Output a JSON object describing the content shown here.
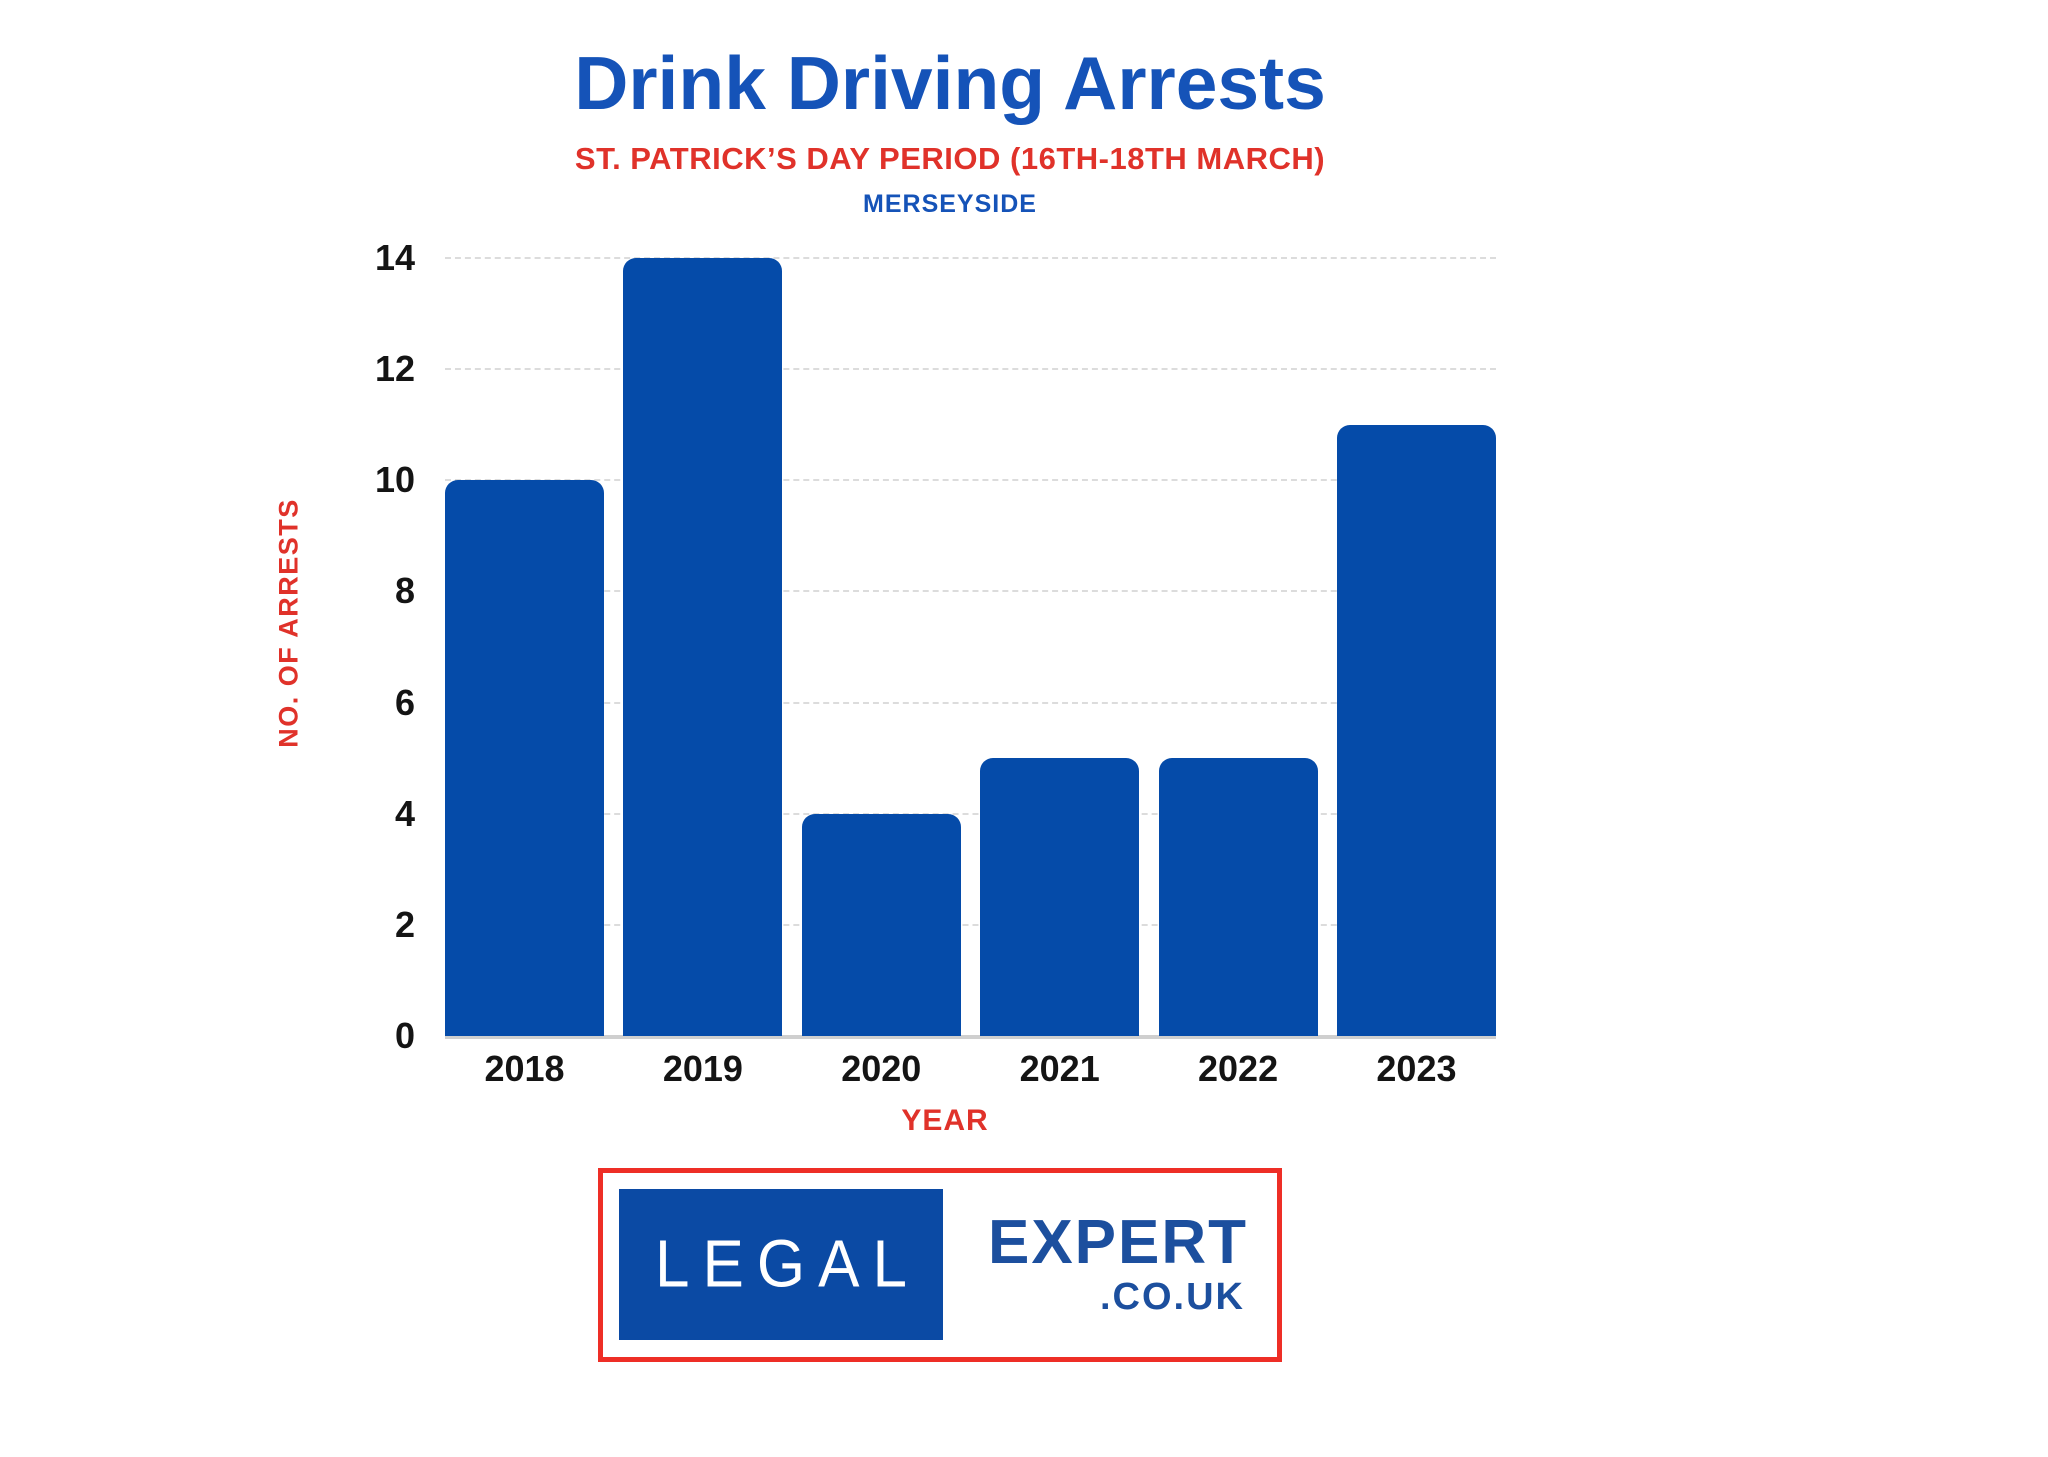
{
  "header": {
    "title": "Drink Driving Arrests",
    "subtitle": "ST. PATRICK’S DAY PERIOD (16TH-18TH MARCH)",
    "region": "MERSEYSIDE"
  },
  "chart_data": {
    "type": "bar",
    "categories": [
      "2018",
      "2019",
      "2020",
      "2021",
      "2022",
      "2023"
    ],
    "values": [
      10,
      14,
      4,
      5,
      5,
      11
    ],
    "title": "Drink Driving Arrests",
    "xlabel": "YEAR",
    "ylabel": "NO. OF ARRESTS",
    "ylim": [
      0,
      14
    ],
    "ytick_step": 2,
    "grid": true,
    "legend": "none"
  },
  "colors": {
    "title_blue": "#1553b8",
    "accent_red": "#e0322a",
    "bar_blue": "#054ba9",
    "gridline_gray": "#dcdcdc",
    "baseline_gray": "#cfcfcf",
    "tick_black": "#141414",
    "logo_border_red": "#ee2e26",
    "logo_box_blue": "#0b4aa4",
    "logo_text_blue": "#1c4f9e"
  },
  "logo": {
    "word_left": "LEGAL",
    "word_right": "EXPERT",
    "domain": ".CO.UK"
  }
}
